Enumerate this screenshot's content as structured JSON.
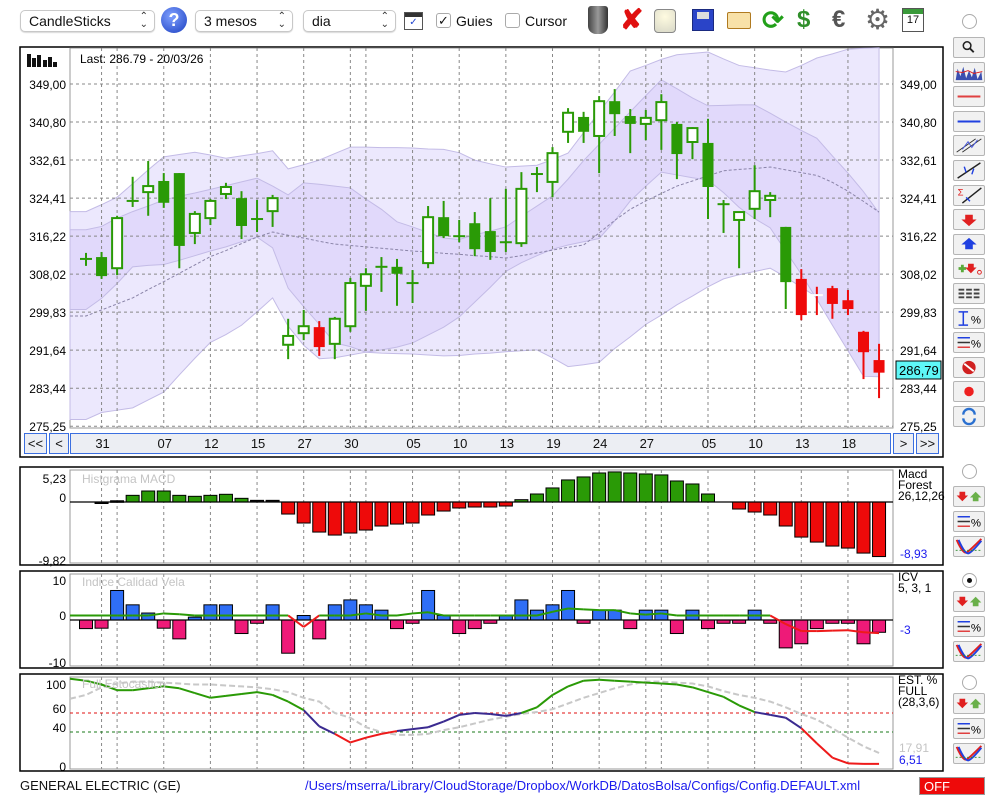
{
  "toolbar": {
    "chart_type": "CandleSticks",
    "period": "3 mesos",
    "interval": "dia",
    "guides": {
      "label": "Guies",
      "checked": true
    },
    "cursor": {
      "label": "Cursor",
      "checked": false
    },
    "calendar_day": "17",
    "icons": [
      "help-icon",
      "chart-window-icon",
      "trash-icon",
      "delete-icon",
      "lamp-icon",
      "save-icon",
      "folder-icon",
      "refresh-icon",
      "currency-refresh-icon",
      "euro-icon",
      "gear-icon",
      "calendar-icon"
    ]
  },
  "main": {
    "last_label": "Last: 286.79 - 20/03/26",
    "current_price": "286,79",
    "current_price_color": "#5ef7f7",
    "price_labels": [
      "349,00",
      "340,80",
      "332,61",
      "324,41",
      "316,22",
      "308,02",
      "299,83",
      "291,64",
      "283,44",
      "275,25"
    ],
    "nav": {
      "first": "<<",
      "prev": "<",
      "next": ">",
      "last": ">>"
    }
  },
  "panels": {
    "macd": {
      "title": "Histgrama MACD",
      "name_lines": [
        "Macd",
        "Forest",
        "26,12,26"
      ],
      "value": "-8,93",
      "ticks": [
        "5,23",
        "0",
        "-9,82"
      ]
    },
    "icv": {
      "title": "Indice Calidad Vela",
      "name_lines": [
        "ICV",
        "5, 3, 1"
      ],
      "value": "-3",
      "ticks": [
        "10",
        "0",
        "-10"
      ]
    },
    "stoch": {
      "title": "Full Estocastico",
      "name_lines": [
        "EST. %",
        "FULL",
        "(28,3,6)"
      ],
      "value_d": "17,91",
      "value_k": "6,51",
      "ticks": [
        "100",
        "60",
        "40",
        "0"
      ]
    }
  },
  "side_tools": [
    "zoom-icon",
    "volume-chart-icon",
    "red-line-icon",
    "blue-line-icon",
    "channel-icon",
    "trendline-icon",
    "sigma-trendline-icon",
    "sell-arrow-icon",
    "buy-arrow-icon",
    "add-order-icon",
    "dashed-lines-icon",
    "range-percent-icon",
    "lines-percent-icon",
    "stop-icon",
    "record-icon",
    "sync-icon"
  ],
  "status": {
    "ticker": "GENERAL ELECTRIC (GE)",
    "path": "/Users/mserra/Library/CloudStorage/Dropbox/WorkDB/DatosBolsa/Configs/Config.DEFAULT.xml",
    "off_label": "OFF"
  },
  "colors": {
    "up": "#2a9a06",
    "down": "#ee0a0a",
    "band_outer": "#ece8fd",
    "band_inner": "#e1d9fb",
    "icv_pos": "#2f6ef6",
    "icv_neg": "#ee1a78",
    "link": "#1a1aee"
  },
  "chart_data": [
    {
      "type": "candlestick",
      "title": "",
      "ylim": [
        275.25,
        349.0
      ],
      "yticks": [
        349.0,
        340.8,
        332.61,
        324.41,
        316.22,
        308.02,
        299.83,
        291.64,
        283.44,
        275.25
      ],
      "grid": true,
      "x_tick_labels": [
        {
          "i": 1,
          "label": "31"
        },
        {
          "i": 5,
          "label": "07"
        },
        {
          "i": 8,
          "label": "12"
        },
        {
          "i": 11,
          "label": "15"
        },
        {
          "i": 14,
          "label": "27"
        },
        {
          "i": 17,
          "label": "30"
        },
        {
          "i": 21,
          "label": "05"
        },
        {
          "i": 24,
          "label": "10"
        },
        {
          "i": 27,
          "label": "13"
        },
        {
          "i": 30,
          "label": "19"
        },
        {
          "i": 33,
          "label": "24"
        },
        {
          "i": 36,
          "label": "27"
        },
        {
          "i": 40,
          "label": "05"
        },
        {
          "i": 43,
          "label": "10"
        },
        {
          "i": 46,
          "label": "13"
        },
        {
          "i": 49,
          "label": "18"
        }
      ],
      "x_grid": [
        1,
        2,
        5,
        8,
        11,
        14,
        17,
        18,
        21,
        24,
        27,
        30,
        33,
        36,
        37,
        40,
        43,
        46,
        49
      ],
      "ohlc": [
        [
          311.3,
          312.6,
          309.8,
          311.3
        ],
        [
          311.7,
          312.8,
          307.0,
          307.6
        ],
        [
          309.3,
          320.6,
          307.8,
          320.1
        ],
        [
          323.8,
          329.0,
          322.5,
          323.8
        ],
        [
          325.7,
          332.4,
          320.6,
          327.0
        ],
        [
          328.1,
          329.8,
          322.3,
          323.4
        ],
        [
          329.8,
          329.8,
          309.3,
          314.1
        ],
        [
          316.9,
          321.6,
          314.5,
          321.0
        ],
        [
          320.1,
          324.2,
          318.6,
          323.8
        ],
        [
          325.3,
          327.7,
          324.2,
          326.8
        ],
        [
          324.4,
          325.9,
          315.6,
          318.4
        ],
        [
          319.9,
          324.0,
          317.1,
          319.9
        ],
        [
          321.6,
          325.1,
          318.2,
          324.4
        ],
        [
          292.8,
          298.4,
          289.7,
          294.7
        ],
        [
          295.3,
          300.3,
          293.8,
          296.8
        ],
        [
          296.6,
          297.9,
          290.4,
          292.3
        ],
        [
          293.0,
          298.8,
          289.7,
          298.4
        ],
        [
          296.8,
          307.2,
          295.6,
          306.1
        ],
        [
          305.5,
          309.3,
          300.1,
          308.0
        ],
        [
          309.6,
          311.7,
          304.2,
          309.6
        ],
        [
          309.6,
          311.3,
          301.2,
          308.1
        ],
        [
          306.1,
          308.9,
          301.8,
          306.1
        ],
        [
          310.4,
          322.7,
          309.3,
          320.3
        ],
        [
          320.3,
          323.8,
          315.8,
          316.2
        ],
        [
          316.2,
          319.7,
          314.9,
          316.2
        ],
        [
          319.0,
          321.4,
          311.9,
          313.4
        ],
        [
          317.3,
          324.4,
          311.1,
          312.8
        ],
        [
          314.9,
          326.4,
          312.8,
          314.9
        ],
        [
          314.7,
          330.0,
          313.9,
          326.4
        ],
        [
          329.6,
          331.1,
          325.7,
          329.6
        ],
        [
          327.9,
          335.4,
          324.6,
          334.1
        ],
        [
          338.7,
          343.8,
          336.3,
          342.8
        ],
        [
          341.9,
          343.0,
          336.3,
          338.7
        ],
        [
          337.8,
          346.4,
          329.8,
          345.3
        ],
        [
          345.3,
          347.9,
          337.8,
          342.5
        ],
        [
          342.1,
          343.6,
          334.1,
          340.4
        ],
        [
          340.4,
          343.4,
          336.9,
          341.7
        ],
        [
          341.2,
          346.8,
          334.8,
          345.1
        ],
        [
          340.4,
          340.8,
          328.5,
          333.9
        ],
        [
          336.5,
          339.7,
          332.8,
          339.5
        ],
        [
          336.3,
          341.5,
          319.9,
          326.8
        ],
        [
          323.1,
          324.0,
          316.9,
          323.1
        ],
        [
          319.7,
          321.4,
          309.3,
          321.4
        ],
        [
          322.1,
          331.5,
          319.9,
          325.9
        ],
        [
          324.0,
          325.7,
          320.3,
          324.9
        ],
        [
          318.2,
          318.2,
          300.5,
          306.3
        ],
        [
          307.0,
          309.1,
          298.1,
          299.2
        ],
        [
          303.5,
          305.3,
          299.2,
          303.5
        ],
        [
          305.0,
          305.5,
          298.4,
          301.6
        ],
        [
          302.4,
          304.6,
          299.2,
          300.5
        ],
        [
          295.6,
          295.8,
          285.4,
          291.2
        ],
        [
          289.5,
          293.0,
          281.3,
          286.79
        ]
      ],
      "candle_colors": [
        "green",
        "green",
        "green",
        "green",
        "green",
        "green",
        "green",
        "green",
        "green",
        "green",
        "green",
        "green",
        "green",
        "green",
        "green",
        "red",
        "green",
        "green",
        "green",
        "green",
        "green",
        "green",
        "green",
        "green",
        "green",
        "green",
        "green",
        "green",
        "green",
        "green",
        "green",
        "green",
        "green",
        "green",
        "green",
        "green",
        "green",
        "green",
        "green",
        "green",
        "green",
        "green",
        "green",
        "green",
        "green",
        "green",
        "red",
        "red",
        "red",
        "red",
        "red",
        "red"
      ],
      "bands": {
        "upper_outer": [
          321.5,
          323,
          324.6,
          327.5,
          330.5,
          333.3,
          333.8,
          334.3,
          333.7,
          333,
          333.5,
          334,
          334.6,
          330.7,
          331.6,
          332.6,
          334,
          335.4,
          335.4,
          335.3,
          335.3,
          335.2,
          335,
          334.9,
          334.2,
          332.6,
          331.8,
          331.1,
          331.3,
          331.5,
          332.7,
          334.1,
          338.5,
          343,
          347.3,
          351.8,
          353,
          354.3,
          355.3,
          355.6,
          355.9,
          354.4,
          353,
          352.5,
          352,
          351.6,
          353,
          354.6,
          355.5,
          356.5,
          356.7,
          356.8
        ],
        "upper_inner": [
          317.6,
          318.3,
          320.1,
          321.5,
          322.7,
          324,
          324.8,
          325.5,
          326.3,
          327.1,
          327.9,
          328.7,
          327,
          325.1,
          327.7,
          327.4,
          327,
          326.6,
          324.2,
          322,
          319.3,
          318.2,
          317,
          315.8,
          315.5,
          316.5,
          317.3,
          318.2,
          320.5,
          322.7,
          324.9,
          328.5,
          332.5,
          336,
          339.5,
          343,
          346.5,
          349.9,
          348,
          346,
          344.3,
          344.4,
          344.5,
          344.5,
          342.7,
          340.8,
          339,
          337.3,
          333.5,
          329.8,
          325.8,
          321.2
        ],
        "middle": [
          299,
          300.3,
          301.6,
          302.9,
          304.7,
          306.4,
          308.2,
          310,
          311.8,
          313.1,
          314.6,
          316,
          317.1,
          316.4,
          315.8,
          315.1,
          314.5,
          314.2,
          313.9,
          313.6,
          313.3,
          313,
          312.8,
          312.5,
          312.3,
          312,
          311.8,
          311.5,
          312,
          312.6,
          313.2,
          313.8,
          314.3,
          316.9,
          319.6,
          322,
          323.8,
          325.4,
          327,
          328.1,
          329.2,
          330.3,
          330.6,
          330.8,
          331.1,
          330.5,
          329.9,
          329.3,
          327.8,
          325.9,
          323.7,
          321.4
        ],
        "lower_inner": [
          300.4,
          302.8,
          306,
          309.6,
          309.9,
          310.1,
          311,
          312,
          313,
          313.9,
          315,
          316,
          313.7,
          305,
          301,
          297.2,
          293.2,
          292.4,
          291.2,
          291.7,
          292.3,
          293.2,
          294.9,
          296.6,
          298.8,
          302,
          305.2,
          308.6,
          310.5,
          312,
          313.4,
          314.3,
          315,
          315.7,
          319.5,
          323.8,
          327,
          330,
          329.4,
          328.8,
          328.3,
          325.6,
          322.4,
          320,
          318,
          313,
          308,
          302.6,
          297,
          291.5,
          286,
          285.9
        ],
        "lower_outer": [
          276.7,
          278.2,
          278.7,
          279.2,
          280.9,
          282.6,
          286.3,
          289.9,
          293.3,
          295,
          297,
          299.9,
          302.9,
          296.8,
          292.7,
          289.8,
          290,
          290.6,
          291.2,
          291,
          290.9,
          290.8,
          290.6,
          290.4,
          290.5,
          290.8,
          291,
          291.3,
          291.5,
          291.7,
          290,
          288.1,
          288.5,
          289,
          292,
          294.5,
          297.2,
          299.2,
          301.4,
          303.3,
          305.3,
          307,
          307.9,
          308.6,
          309.3,
          307.4,
          305.2,
          303.1,
          299,
          294,
          291,
          291
        ]
      }
    },
    {
      "type": "bar",
      "title": "Histgrama MACD",
      "ylim": [
        -9.82,
        5.23
      ],
      "values": [
        0,
        -0.1,
        0.2,
        1.09,
        1.8,
        1.8,
        1.09,
        0.93,
        1.09,
        1.26,
        0.6,
        0.27,
        0.27,
        -1.97,
        -3.44,
        -4.92,
        -5.41,
        -5.08,
        -4.59,
        -3.93,
        -3.61,
        -3.44,
        -2.13,
        -1.48,
        -0.98,
        -0.82,
        -0.82,
        -0.66,
        0.38,
        1.31,
        2.3,
        3.61,
        4.1,
        4.75,
        4.92,
        4.75,
        4.59,
        4.43,
        3.44,
        2.95,
        1.31,
        0,
        -1.15,
        -1.64,
        -2.13,
        -3.93,
        -5.74,
        -6.56,
        -7.21,
        -7.54,
        -8.36,
        -8.93
      ]
    },
    {
      "type": "bar",
      "title": "Indice Calidad Vela",
      "ylim": [
        -10,
        10
      ],
      "values": [
        -2.1,
        -2,
        7.2,
        3.7,
        1.7,
        -2,
        -4.6,
        0.7,
        3.7,
        3.7,
        -3.3,
        -0.8,
        3.7,
        -8.1,
        1.1,
        -4.6,
        3.7,
        4.9,
        3.7,
        2.4,
        -2.1,
        -0.8,
        7.2,
        1.1,
        -3.3,
        -2.1,
        -0.8,
        1.1,
        4.9,
        2.4,
        3.7,
        7.2,
        -0.8,
        2.4,
        2.4,
        -2.1,
        2.4,
        2.4,
        -3.3,
        2.4,
        -2.1,
        -0.8,
        -0.8,
        2.4,
        -0.8,
        -6.8,
        -5.8,
        -2.1,
        -0.8,
        -0.8,
        -5.8,
        -3
      ],
      "signal": [
        1.1,
        1.1,
        1.1,
        1.1,
        1.1,
        1.6,
        1.4,
        1.1,
        1.1,
        1.1,
        1.1,
        1.1,
        1.1,
        1.1,
        -1.7,
        1.1,
        1.1,
        1.1,
        1.6,
        1.1,
        1.1,
        1.6,
        1.9,
        1.1,
        1.1,
        1.1,
        1.1,
        1.1,
        1.1,
        1.1,
        2.0,
        2.8,
        2.6,
        2.4,
        2.4,
        1.6,
        1.3,
        1.6,
        1.1,
        1.1,
        1.1,
        1.1,
        1.1,
        1.1,
        1.1,
        -1.0,
        -2.7,
        -2.7,
        -2.6,
        -2.5,
        -3.0,
        -3.2
      ]
    },
    {
      "type": "line",
      "title": "Full Estocastico",
      "ylim": [
        0,
        100
      ],
      "levels": [
        60,
        40
      ],
      "series": [
        {
          "values": [
            94,
            90,
            84,
            84,
            86,
            88,
            86,
            81,
            76,
            78,
            80,
            82,
            79,
            72,
            63,
            46,
            38,
            29,
            34,
            38,
            41,
            43,
            45,
            51,
            58,
            60,
            59,
            57,
            60,
            66,
            79,
            88,
            94,
            95,
            94,
            93,
            92,
            91,
            90,
            87,
            82,
            77,
            68,
            61,
            58,
            55,
            44,
            28,
            13,
            7,
            6.5,
            6.51
          ]
        },
        {
          "values": [
            79,
            87,
            91,
            93,
            93,
            92,
            91,
            90,
            90,
            89,
            88,
            87,
            85,
            82,
            76,
            72,
            60,
            55,
            45,
            40,
            37,
            37,
            38,
            42,
            45,
            49,
            53,
            56,
            59,
            61,
            64,
            70,
            76,
            81,
            86,
            90,
            93,
            93,
            92,
            91,
            88,
            83,
            79,
            76,
            72,
            66,
            59,
            53,
            44,
            34,
            25,
            17.91
          ]
        }
      ]
    }
  ]
}
